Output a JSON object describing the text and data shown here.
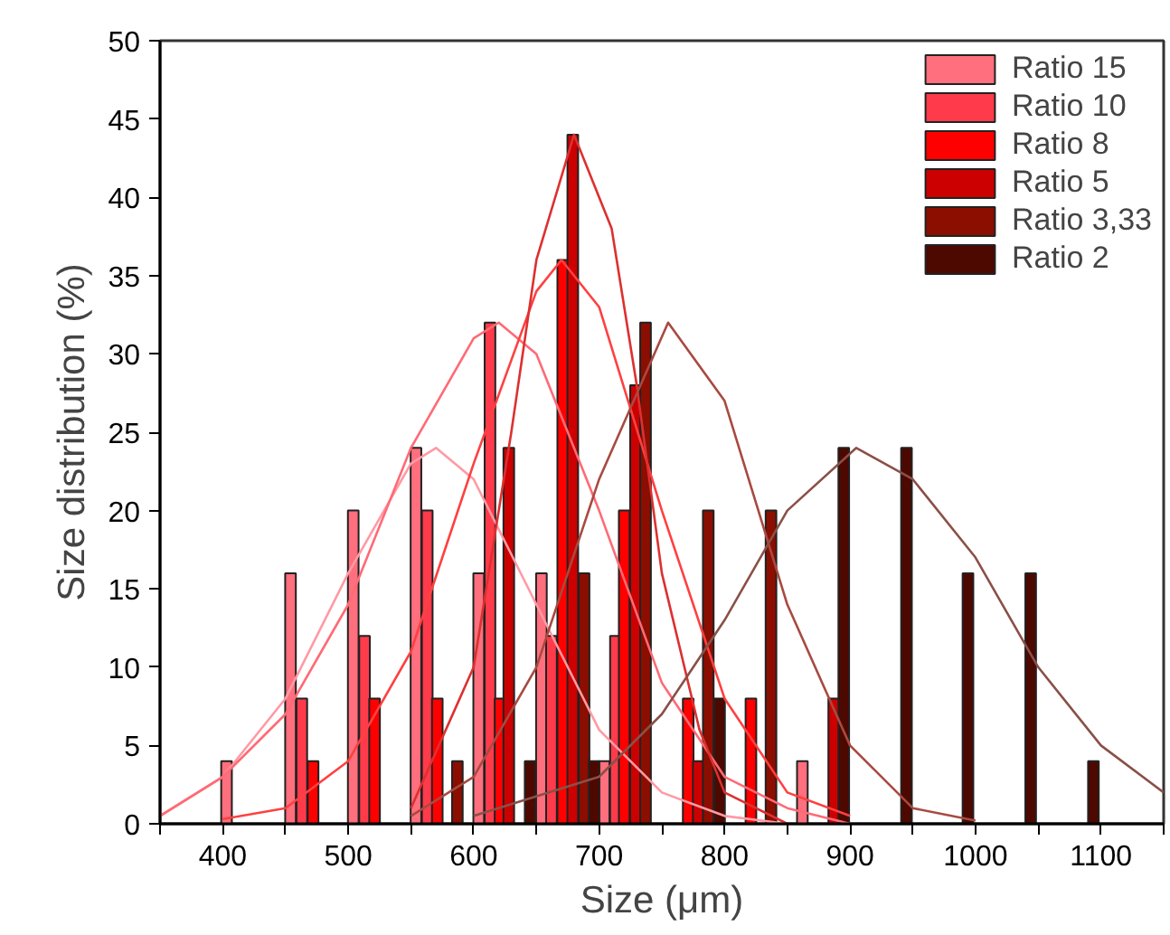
{
  "chart_data": {
    "type": "bar",
    "xlabel": "Size (μm)",
    "ylabel": "Size distribution (%)",
    "xlim": [
      350,
      1150
    ],
    "ylim": [
      0,
      50
    ],
    "xticks": [
      {
        "value": 350,
        "label": null
      },
      400,
      {
        "value": 450,
        "label": null
      },
      500,
      {
        "value": 550,
        "label": null
      },
      600,
      {
        "value": 650,
        "label": null
      },
      700,
      {
        "value": 750,
        "label": null
      },
      800,
      {
        "value": 850,
        "label": null
      },
      900,
      {
        "value": 950,
        "label": null
      },
      1000,
      {
        "value": 1050,
        "label": null
      },
      1100,
      {
        "value": 1150,
        "label": null
      }
    ],
    "yticks": [
      0,
      5,
      10,
      15,
      20,
      25,
      30,
      35,
      40,
      45,
      50
    ],
    "legend": "top right",
    "grid": false,
    "series": [
      {
        "name": "Ratio 15",
        "color": "#ff6f7d",
        "x": [
          403,
          454,
          504,
          554,
          604,
          654,
          704,
          862
        ],
        "values": [
          4,
          16,
          20,
          24,
          16,
          16,
          4,
          4
        ]
      },
      {
        "name": "Ratio 10",
        "color": "#ff3b4b",
        "x": [
          463,
          513,
          563,
          613,
          662,
          713
        ],
        "values": [
          8,
          12,
          20,
          32,
          12,
          12
        ]
      },
      {
        "name": "Ratio 8",
        "color": "#ff0000",
        "x": [
          472,
          521,
          571,
          621,
          671,
          720,
          771,
          821
        ],
        "values": [
          4,
          8,
          8,
          8,
          36,
          20,
          8,
          8
        ]
      },
      {
        "name": "Ratio 5",
        "color": "#cc0000",
        "x": [
          628,
          679,
          729,
          779,
          887
        ],
        "values": [
          24,
          44,
          28,
          4,
          8
        ]
      },
      {
        "name": "Ratio 3,33",
        "color": "#8b0e00",
        "x": [
          587,
          688,
          737,
          787,
          837
        ],
        "values": [
          4,
          16,
          32,
          20,
          20
        ]
      },
      {
        "name": "Ratio 2",
        "color": "#4d0800",
        "x": [
          645,
          696,
          796,
          895,
          945,
          994,
          1044,
          1094
        ],
        "values": [
          4,
          4,
          8,
          24,
          24,
          16,
          16,
          4
        ]
      },
      {
        "type": "line",
        "color": "#ff9aa4",
        "x": [
          350,
          400,
          450,
          500,
          550,
          570,
          600,
          650,
          700,
          750,
          800,
          850
        ],
        "values": [
          0.5,
          3,
          8,
          16,
          23,
          24,
          22,
          14,
          6,
          2,
          0.5,
          0
        ]
      },
      {
        "type": "line",
        "color": "#ff6a75",
        "x": [
          350,
          400,
          450,
          500,
          550,
          600,
          620,
          650,
          700,
          750,
          800,
          850,
          900
        ],
        "values": [
          0.5,
          3,
          7,
          14,
          24,
          31,
          32,
          30,
          20,
          9,
          3,
          1,
          0
        ]
      },
      {
        "type": "line",
        "color": "#ff4040",
        "x": [
          400,
          450,
          500,
          550,
          600,
          650,
          670,
          700,
          750,
          800,
          850,
          900
        ],
        "values": [
          0.3,
          1,
          4,
          11,
          23,
          34,
          36,
          33,
          20,
          8,
          2,
          0.5
        ]
      },
      {
        "type": "line",
        "color": "#dd3030",
        "x": [
          550,
          600,
          630,
          650,
          680,
          710,
          730,
          750,
          780,
          800,
          850
        ],
        "values": [
          1,
          10,
          25,
          36,
          44,
          38,
          28,
          16,
          6,
          2,
          0
        ]
      },
      {
        "type": "line",
        "color": "#a84a40",
        "x": [
          550,
          600,
          650,
          700,
          755,
          800,
          850,
          900,
          950,
          1000
        ],
        "values": [
          0.5,
          3,
          10,
          22,
          32,
          27,
          14,
          5,
          1,
          0.2
        ]
      },
      {
        "type": "line",
        "color": "#8a5048",
        "x": [
          600,
          700,
          750,
          800,
          850,
          905,
          950,
          1000,
          1050,
          1100,
          1150
        ],
        "values": [
          0.5,
          3,
          7,
          13,
          20,
          24,
          22,
          17,
          10,
          5,
          2
        ]
      }
    ]
  }
}
